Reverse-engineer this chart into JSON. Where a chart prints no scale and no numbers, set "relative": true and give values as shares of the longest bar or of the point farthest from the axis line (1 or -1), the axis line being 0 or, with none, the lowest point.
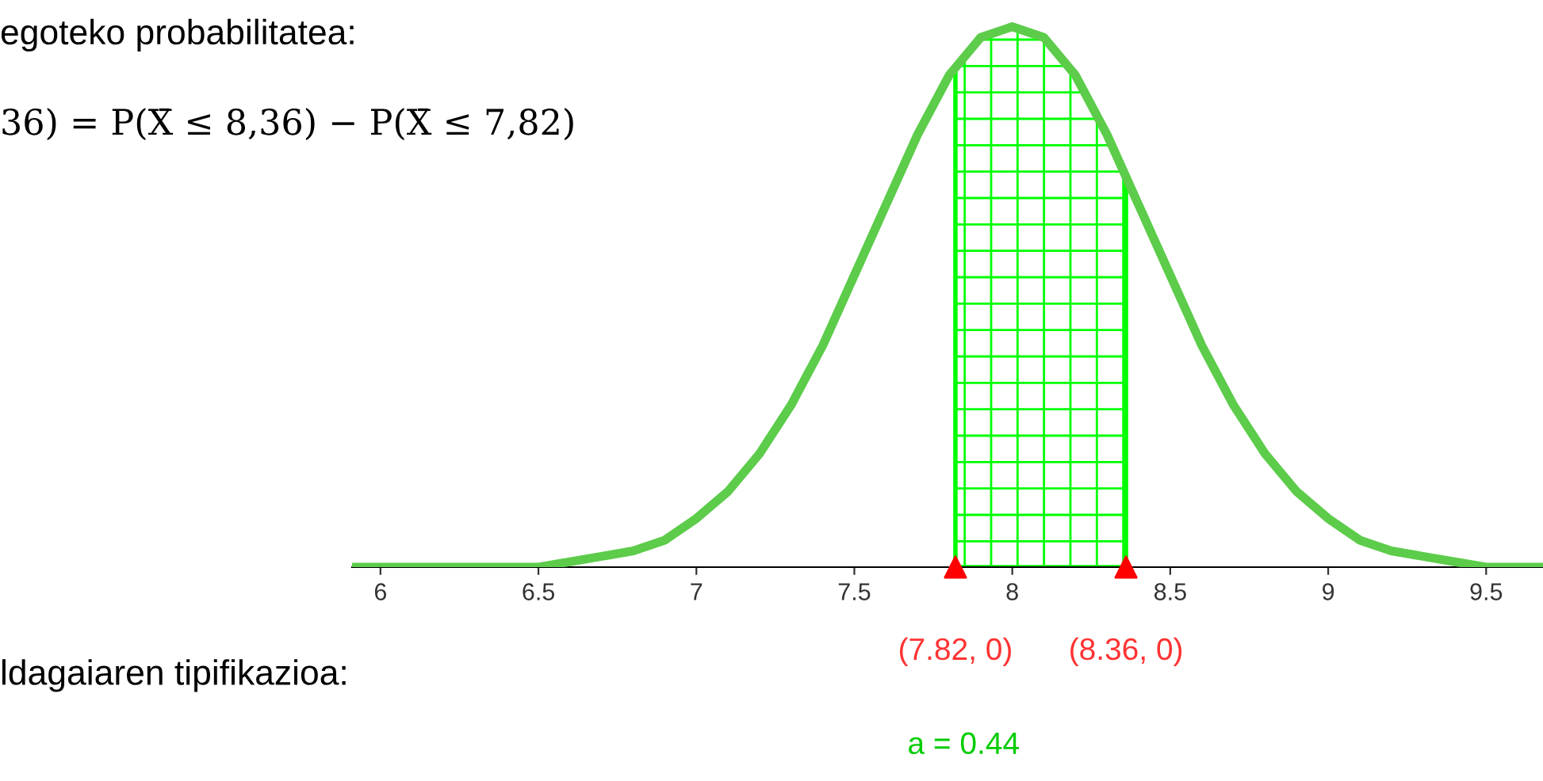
{
  "chart_data": {
    "type": "line",
    "relative": true,
    "tick_labels": "x",
    "grid": false,
    "legend": false,
    "xlim": [
      5.91,
      9.68
    ],
    "xticks": [
      6,
      6.5,
      7,
      7.5,
      8,
      8.5,
      9,
      9.5
    ],
    "annotations": [
      "egoteko probabilitatea:",
      "36) = P(X̄ ≤ 8,36) − P(X̄ ≤ 7,82)",
      "ldagaiaren tipifikazioa:",
      "a = 0.44",
      {
        "text": "(7.82, 0)",
        "x": 7.82,
        "y": 0
      },
      {
        "text": "(8.36, 0)",
        "x": 8.36,
        "y": 0
      }
    ],
    "series": [
      {
        "color": "#5ccc4a",
        "x": [
          5.91,
          6.0,
          6.1,
          6.2,
          6.3,
          6.4,
          6.5,
          6.6,
          6.7,
          6.8,
          6.9,
          7.0,
          7.1,
          7.2,
          7.3,
          7.4,
          7.5,
          7.6,
          7.7,
          7.8,
          7.9,
          8.0,
          8.1,
          8.2,
          8.3,
          8.4,
          8.5,
          8.6,
          8.7,
          8.8,
          8.9,
          9.0,
          9.1,
          9.2,
          9.3,
          9.4,
          9.5,
          9.6,
          9.68
        ],
        "values": [
          0,
          0,
          0,
          0,
          0,
          0,
          0,
          0.01,
          0.02,
          0.03,
          0.05,
          0.09,
          0.14,
          0.21,
          0.3,
          0.41,
          0.54,
          0.67,
          0.8,
          0.91,
          0.98,
          1,
          0.98,
          0.91,
          0.8,
          0.67,
          0.54,
          0.41,
          0.3,
          0.21,
          0.14,
          0.09,
          0.05,
          0.03,
          0.02,
          0.01,
          0,
          0,
          0
        ]
      },
      {
        "type": "area",
        "color": "#00ff00",
        "x": [
          7.82,
          7.9,
          8.0,
          8.1,
          8.2,
          8.3,
          8.36
        ],
        "values": [
          0.92,
          0.98,
          1,
          0.98,
          0.91,
          0.8,
          0.73
        ]
      },
      {
        "type": "scatter",
        "color": "#ff0000",
        "marker": "triangle",
        "x": [
          7.82,
          8.36
        ],
        "values": [
          0,
          0
        ]
      }
    ]
  }
}
